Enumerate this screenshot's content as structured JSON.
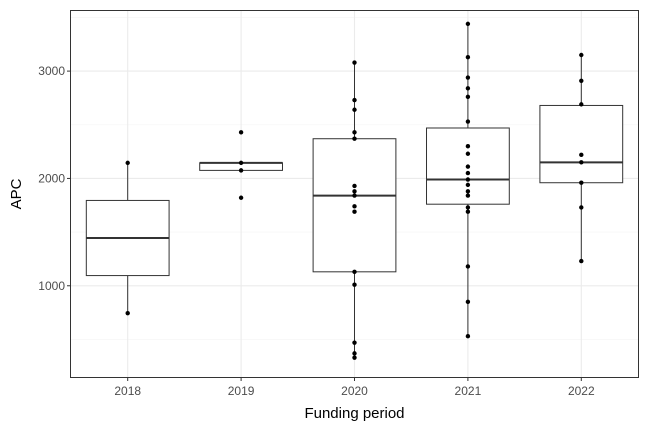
{
  "chart_data": {
    "type": "boxplot",
    "title": "",
    "xlabel": "Funding period",
    "ylabel": "APC",
    "categories": [
      "2018",
      "2019",
      "2020",
      "2021",
      "2022"
    ],
    "ylim": [
      150,
      3560
    ],
    "yticks": [
      1000,
      2000,
      3000
    ],
    "ytick_labels": [
      "1000",
      "2000",
      "3000"
    ],
    "grid": true,
    "legend": "none",
    "boxes": [
      {
        "category": "2018",
        "whisker_low": 745,
        "q1": 1095,
        "median": 1445,
        "q3": 1795,
        "whisker_high": 2145
      },
      {
        "category": "2019",
        "whisker_low": 2075,
        "q1": 2075,
        "median": 2145,
        "q3": 2145,
        "whisker_high": 2145
      },
      {
        "category": "2020",
        "whisker_low": 330,
        "q1": 1130,
        "median": 1840,
        "q3": 2370,
        "whisker_high": 3080
      },
      {
        "category": "2021",
        "whisker_low": 530,
        "q1": 1760,
        "median": 1990,
        "q3": 2470,
        "whisker_high": 3440
      },
      {
        "category": "2022",
        "whisker_low": 1230,
        "q1": 1960,
        "median": 2150,
        "q3": 2680,
        "whisker_high": 3150
      }
    ],
    "points": [
      {
        "category": "2018",
        "values": [
          2145,
          745
        ]
      },
      {
        "category": "2019",
        "values": [
          2430,
          2145,
          2075,
          1820
        ]
      },
      {
        "category": "2020",
        "values": [
          3080,
          2730,
          2640,
          2430,
          2370,
          1930,
          1880,
          1840,
          1740,
          1690,
          1130,
          1010,
          470,
          370,
          330
        ]
      },
      {
        "category": "2021",
        "values": [
          3440,
          3130,
          2940,
          2840,
          2760,
          2530,
          2300,
          2230,
          2110,
          2050,
          1990,
          1940,
          1880,
          1840,
          1730,
          1690,
          1180,
          850,
          530
        ]
      },
      {
        "category": "2022",
        "values": [
          3150,
          2910,
          2690,
          2220,
          2150,
          1960,
          1730,
          1230
        ]
      }
    ],
    "colors": {
      "background": "#ffffff",
      "panel_border": "#333333",
      "grid_major": "#ebebeb",
      "grid_minor": "#f5f5f5",
      "box_stroke": "#333333",
      "median": "#333333",
      "point": "#000000",
      "tick_label": "#4d4d4d",
      "axis_title": "#000000"
    }
  }
}
